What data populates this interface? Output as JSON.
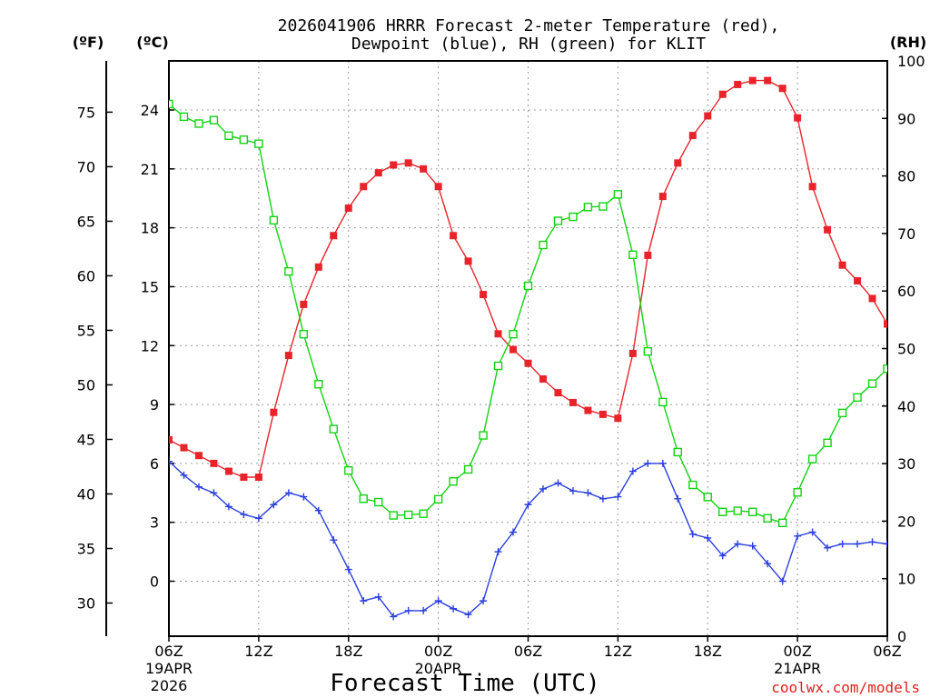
{
  "chart_data": {
    "type": "line",
    "title_line1": "2026041906 HRRR Forecast 2-meter Temperature (red),",
    "title_line2": "Dewpoint (blue), RH (green) for KLIT",
    "xlabel": "Forecast Time (UTC)",
    "credit": "coolwx.com/models",
    "units": {
      "fahrenheit": "(ºF)",
      "celsius": "(ºC)",
      "rh": "(RH)"
    },
    "x_hours": [
      0,
      1,
      2,
      3,
      4,
      5,
      6,
      7,
      8,
      9,
      10,
      11,
      12,
      13,
      14,
      15,
      16,
      17,
      18,
      19,
      20,
      21,
      22,
      23,
      24,
      25,
      26,
      27,
      28,
      29,
      30,
      31,
      32,
      33,
      34,
      35,
      36,
      37,
      38,
      39,
      40,
      41,
      42,
      43,
      44,
      45,
      46,
      47,
      48
    ],
    "x_ticks": [
      {
        "hour": 0,
        "lines": [
          "06Z",
          "19APR",
          "2026"
        ]
      },
      {
        "hour": 6,
        "lines": [
          "12Z"
        ]
      },
      {
        "hour": 12,
        "lines": [
          "18Z"
        ]
      },
      {
        "hour": 18,
        "lines": [
          "00Z",
          "20APR"
        ]
      },
      {
        "hour": 24,
        "lines": [
          "06Z"
        ]
      },
      {
        "hour": 30,
        "lines": [
          "12Z"
        ]
      },
      {
        "hour": 36,
        "lines": [
          "18Z"
        ]
      },
      {
        "hour": 42,
        "lines": [
          "00Z",
          "21APR"
        ]
      },
      {
        "hour": 48,
        "lines": [
          "06Z"
        ]
      }
    ],
    "xlim": [
      0,
      48
    ],
    "celsius_ticks": [
      "24",
      "21",
      "18",
      "15",
      "12",
      "9",
      "6",
      "3",
      "0"
    ],
    "celsius_tick_values": [
      24,
      21,
      18,
      15,
      12,
      9,
      6,
      3,
      0
    ],
    "fahrenheit_ticks": [
      "75",
      "70",
      "65",
      "60",
      "55",
      "50",
      "45",
      "40",
      "35",
      "30"
    ],
    "fahrenheit_tick_values": [
      75,
      70,
      65,
      60,
      55,
      50,
      45,
      40,
      35,
      30
    ],
    "rh_ticks": [
      "100",
      "90",
      "80",
      "70",
      "60",
      "50",
      "40",
      "30",
      "20",
      "10",
      "0"
    ],
    "rh_tick_values": [
      100,
      90,
      80,
      70,
      60,
      50,
      40,
      30,
      20,
      10,
      0
    ],
    "ylim_celsius": [
      -2.8,
      26.5
    ],
    "ylim_rh": [
      0,
      100
    ],
    "grid": true,
    "series": [
      {
        "name": "2-meter Temperature",
        "color": "#e8232a",
        "marker": "filled-square",
        "axis": "celsius",
        "values": [
          7.2,
          6.8,
          6.4,
          6.0,
          5.6,
          5.3,
          5.3,
          8.6,
          11.5,
          14.1,
          16.0,
          17.6,
          19.0,
          20.1,
          20.8,
          21.2,
          21.3,
          21.0,
          20.1,
          17.6,
          16.3,
          14.6,
          12.6,
          11.8,
          11.1,
          10.3,
          9.6,
          9.1,
          8.7,
          8.5,
          8.3,
          11.6,
          16.6,
          19.6,
          21.3,
          22.7,
          23.7,
          24.8,
          25.3,
          25.5,
          25.5,
          25.1,
          23.6,
          20.1,
          17.9,
          16.1,
          15.3,
          14.4,
          13.1
        ]
      },
      {
        "name": "Dewpoint",
        "color": "#2a3fde",
        "marker": "plus",
        "axis": "celsius",
        "values": [
          6.1,
          5.4,
          4.8,
          4.5,
          3.8,
          3.4,
          3.2,
          3.9,
          4.5,
          4.3,
          3.6,
          2.1,
          0.6,
          -1.0,
          -0.8,
          -1.8,
          -1.5,
          -1.5,
          -1.0,
          -1.4,
          -1.7,
          -1.0,
          1.5,
          2.5,
          3.9,
          4.7,
          5.0,
          4.6,
          4.5,
          4.2,
          4.3,
          5.6,
          6.0,
          6.0,
          4.2,
          2.4,
          2.2,
          1.3,
          1.9,
          1.8,
          0.9,
          0.0,
          2.3,
          2.5,
          1.7,
          1.9,
          1.9,
          2.0,
          1.9
        ]
      },
      {
        "name": "RH",
        "color": "#12d312",
        "marker": "open-square",
        "axis": "rh",
        "values": [
          92.5,
          90.3,
          89.1,
          89.7,
          87.0,
          86.3,
          85.6,
          72.3,
          63.4,
          52.5,
          43.8,
          36.0,
          28.8,
          23.9,
          23.3,
          21.0,
          21.1,
          21.3,
          23.8,
          26.9,
          29.0,
          34.9,
          47.0,
          52.5,
          60.9,
          68.0,
          72.2,
          72.9,
          74.6,
          74.7,
          76.8,
          66.3,
          49.5,
          40.7,
          32.0,
          26.3,
          24.2,
          21.6,
          21.8,
          21.6,
          20.5,
          19.7,
          25.0,
          30.8,
          33.6,
          38.8,
          41.5,
          43.9,
          46.5
        ]
      }
    ]
  }
}
